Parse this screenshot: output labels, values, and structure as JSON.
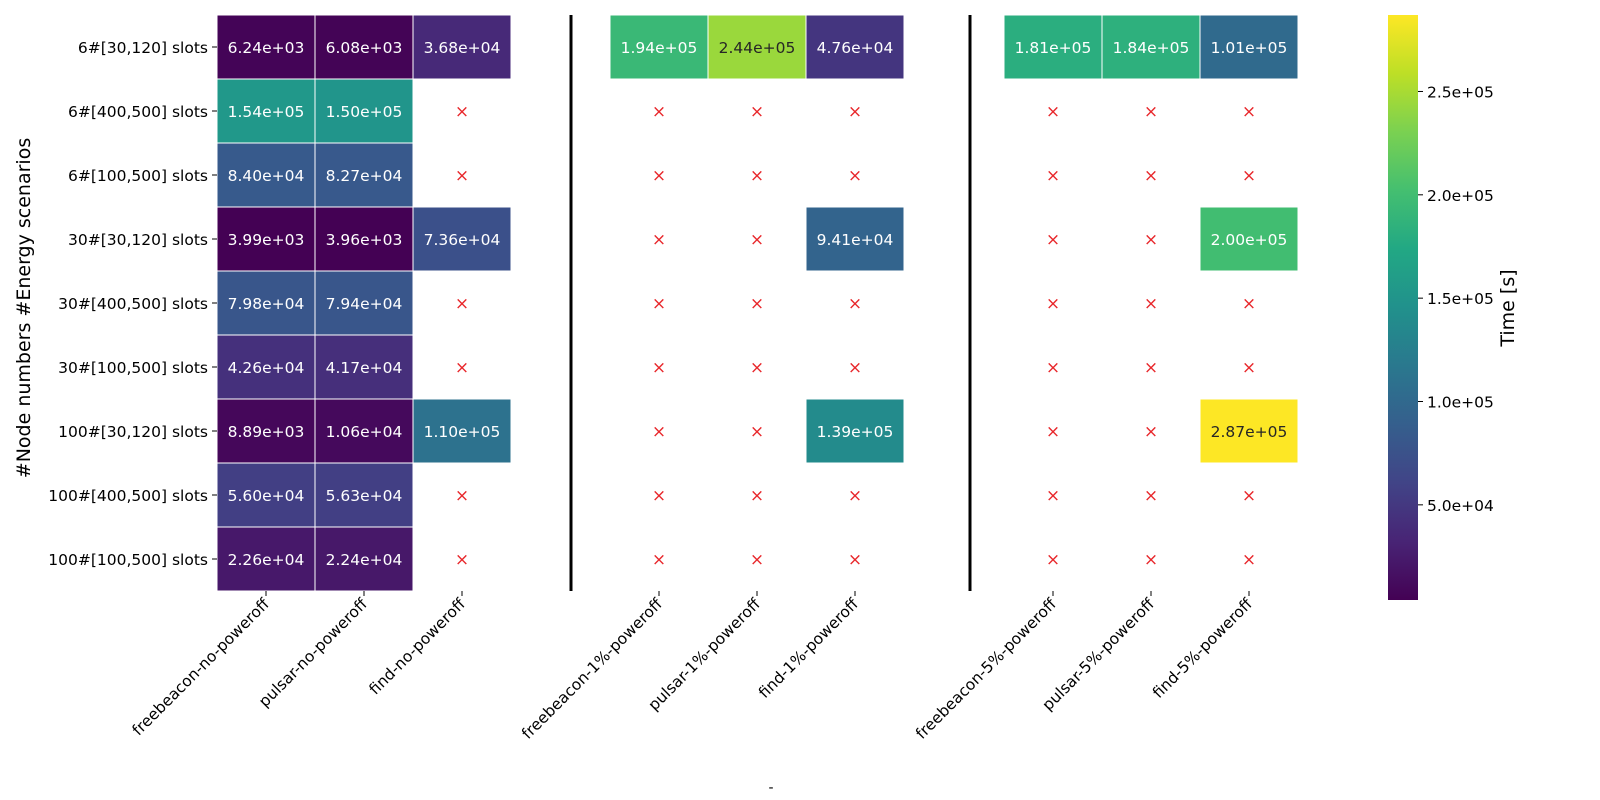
{
  "chart_data": {
    "type": "heatmap",
    "title": "",
    "xlabel": "-",
    "ylabel": "#Node numbers #Energy scenarios",
    "colorbar": {
      "label": "Time [s]",
      "colormap": "viridis",
      "vmin": 3960,
      "vmax": 287000,
      "ticks": [
        50000,
        100000,
        150000,
        200000,
        250000
      ],
      "tick_labels": [
        "5.0e+04",
        "1.0e+05",
        "1.5e+05",
        "2.0e+05",
        "2.5e+05"
      ]
    },
    "rows": [
      "6#[30,120] slots",
      "6#[400,500] slots",
      "6#[100,500] slots",
      "30#[30,120] slots",
      "30#[400,500] slots",
      "30#[100,500] slots",
      "100#[30,120] slots",
      "100#[400,500] slots",
      "100#[100,500] slots"
    ],
    "columns": [
      "freebeacon-no-poweroff",
      "pulsar-no-poweroff",
      "find-no-poweroff",
      "freebeacon-1%-poweroff",
      "pulsar-1%-poweroff",
      "find-1%-poweroff",
      "freebeacon-5%-poweroff",
      "pulsar-5%-poweroff",
      "find-5%-poweroff"
    ],
    "column_groups": [
      [
        0,
        1,
        2
      ],
      [
        3,
        4,
        5
      ],
      [
        6,
        7,
        8
      ]
    ],
    "missing_marker": "×",
    "missing_color": "#e8262a",
    "values": [
      [
        "6.24e+03",
        "6.08e+03",
        "3.68e+04",
        "1.94e+05",
        "2.44e+05",
        "4.76e+04",
        "1.81e+05",
        "1.84e+05",
        "1.01e+05"
      ],
      [
        "1.54e+05",
        "1.50e+05",
        null,
        null,
        null,
        null,
        null,
        null,
        null
      ],
      [
        "8.40e+04",
        "8.27e+04",
        null,
        null,
        null,
        null,
        null,
        null,
        null
      ],
      [
        "3.99e+03",
        "3.96e+03",
        "7.36e+04",
        null,
        null,
        "9.41e+04",
        null,
        null,
        "2.00e+05"
      ],
      [
        "7.98e+04",
        "7.94e+04",
        null,
        null,
        null,
        null,
        null,
        null,
        null
      ],
      [
        "4.26e+04",
        "4.17e+04",
        null,
        null,
        null,
        null,
        null,
        null,
        null
      ],
      [
        "8.89e+03",
        "1.06e+04",
        "1.10e+05",
        null,
        null,
        "1.39e+05",
        null,
        null,
        "2.87e+05"
      ],
      [
        "5.60e+04",
        "5.63e+04",
        null,
        null,
        null,
        null,
        null,
        null,
        null
      ],
      [
        "2.26e+04",
        "2.24e+04",
        null,
        null,
        null,
        null,
        null,
        null,
        null
      ]
    ]
  }
}
